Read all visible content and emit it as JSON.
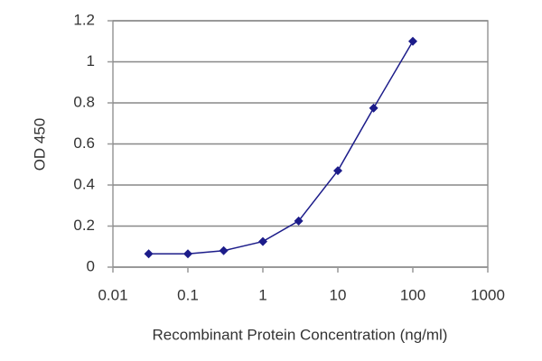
{
  "chart_data": {
    "type": "line",
    "x_label": "Recombinant Protein Concentration (ng/ml)",
    "y_label": "OD 450",
    "x": [
      0.03,
      0.1,
      0.3,
      1,
      3,
      10,
      30,
      100
    ],
    "series": [
      {
        "color": "#1c1c8a",
        "values": [
          0.065,
          0.065,
          0.08,
          0.125,
          0.225,
          0.47,
          0.775,
          1.1
        ]
      }
    ],
    "xlim": [
      0.01,
      1000
    ],
    "xticks": [
      0.01,
      0.1,
      1,
      10,
      100,
      1000
    ],
    "xscale": "log",
    "ylim": [
      0,
      1.2
    ],
    "yticks": [
      0,
      0.2,
      0.4,
      0.6,
      0.8,
      1,
      1.2
    ],
    "grid": true
  }
}
